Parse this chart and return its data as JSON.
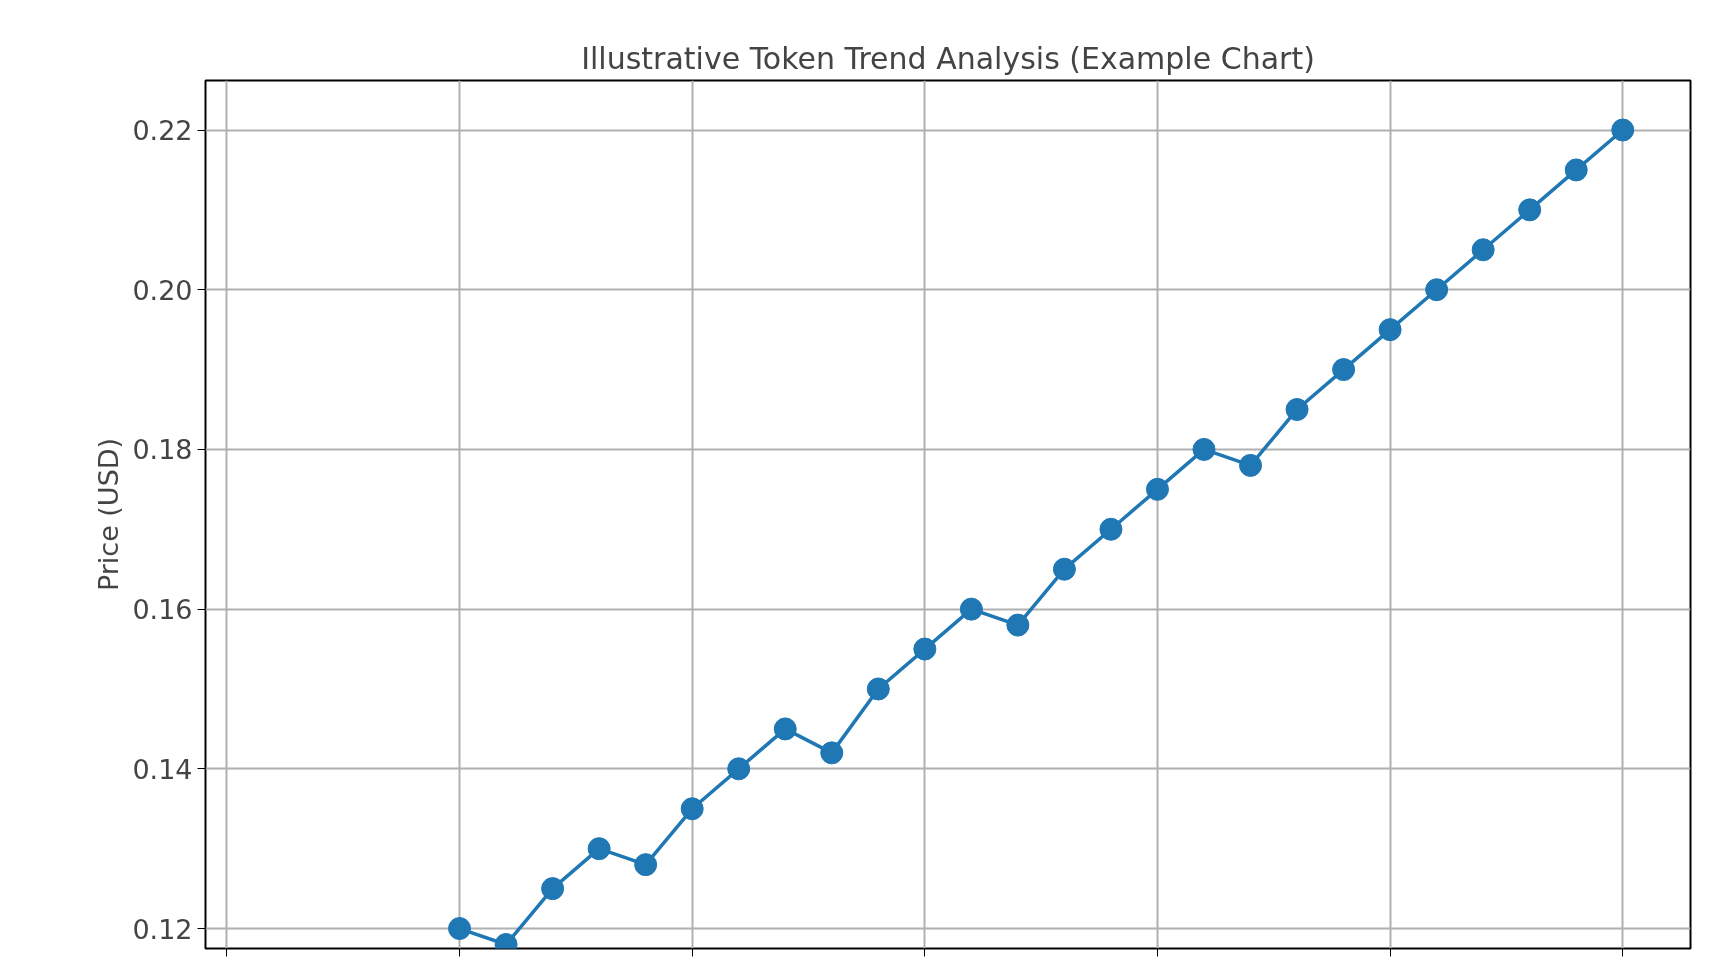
{
  "chart_data": {
    "type": "line",
    "title": "Illustrative Token Trend Analysis (Example Chart)",
    "ylabel": "Price (USD)",
    "categories": [
      null,
      null,
      null,
      null,
      null,
      null,
      null,
      null,
      null,
      null,
      null,
      null,
      null,
      null,
      null,
      null,
      null,
      null,
      null,
      null,
      null,
      null,
      null,
      null,
      null,
      null
    ],
    "series": [
      {
        "color": "#1f77b4",
        "values": [
          0.12,
          0.118,
          0.125,
          0.13,
          0.128,
          0.135,
          0.14,
          0.145,
          0.142,
          0.15,
          0.155,
          0.16,
          0.158,
          0.165,
          0.17,
          0.175,
          0.18,
          0.178,
          0.185,
          0.19,
          0.195,
          0.2,
          0.205,
          0.21,
          0.215,
          0.22
        ]
      }
    ],
    "ylim": [
      0.1175,
      0.2262
    ],
    "yticks": [
      {
        "value": 0.12,
        "label": "0.12"
      },
      {
        "value": 0.14,
        "label": "0.14"
      },
      {
        "value": 0.16,
        "label": "0.16"
      },
      {
        "value": 0.18,
        "label": "0.18"
      },
      {
        "value": 0.2,
        "label": "0.20"
      },
      {
        "value": 0.22,
        "label": "0.22"
      }
    ],
    "tick_labels": "y",
    "grid": true,
    "marker": "circle",
    "line_style": "solid"
  }
}
